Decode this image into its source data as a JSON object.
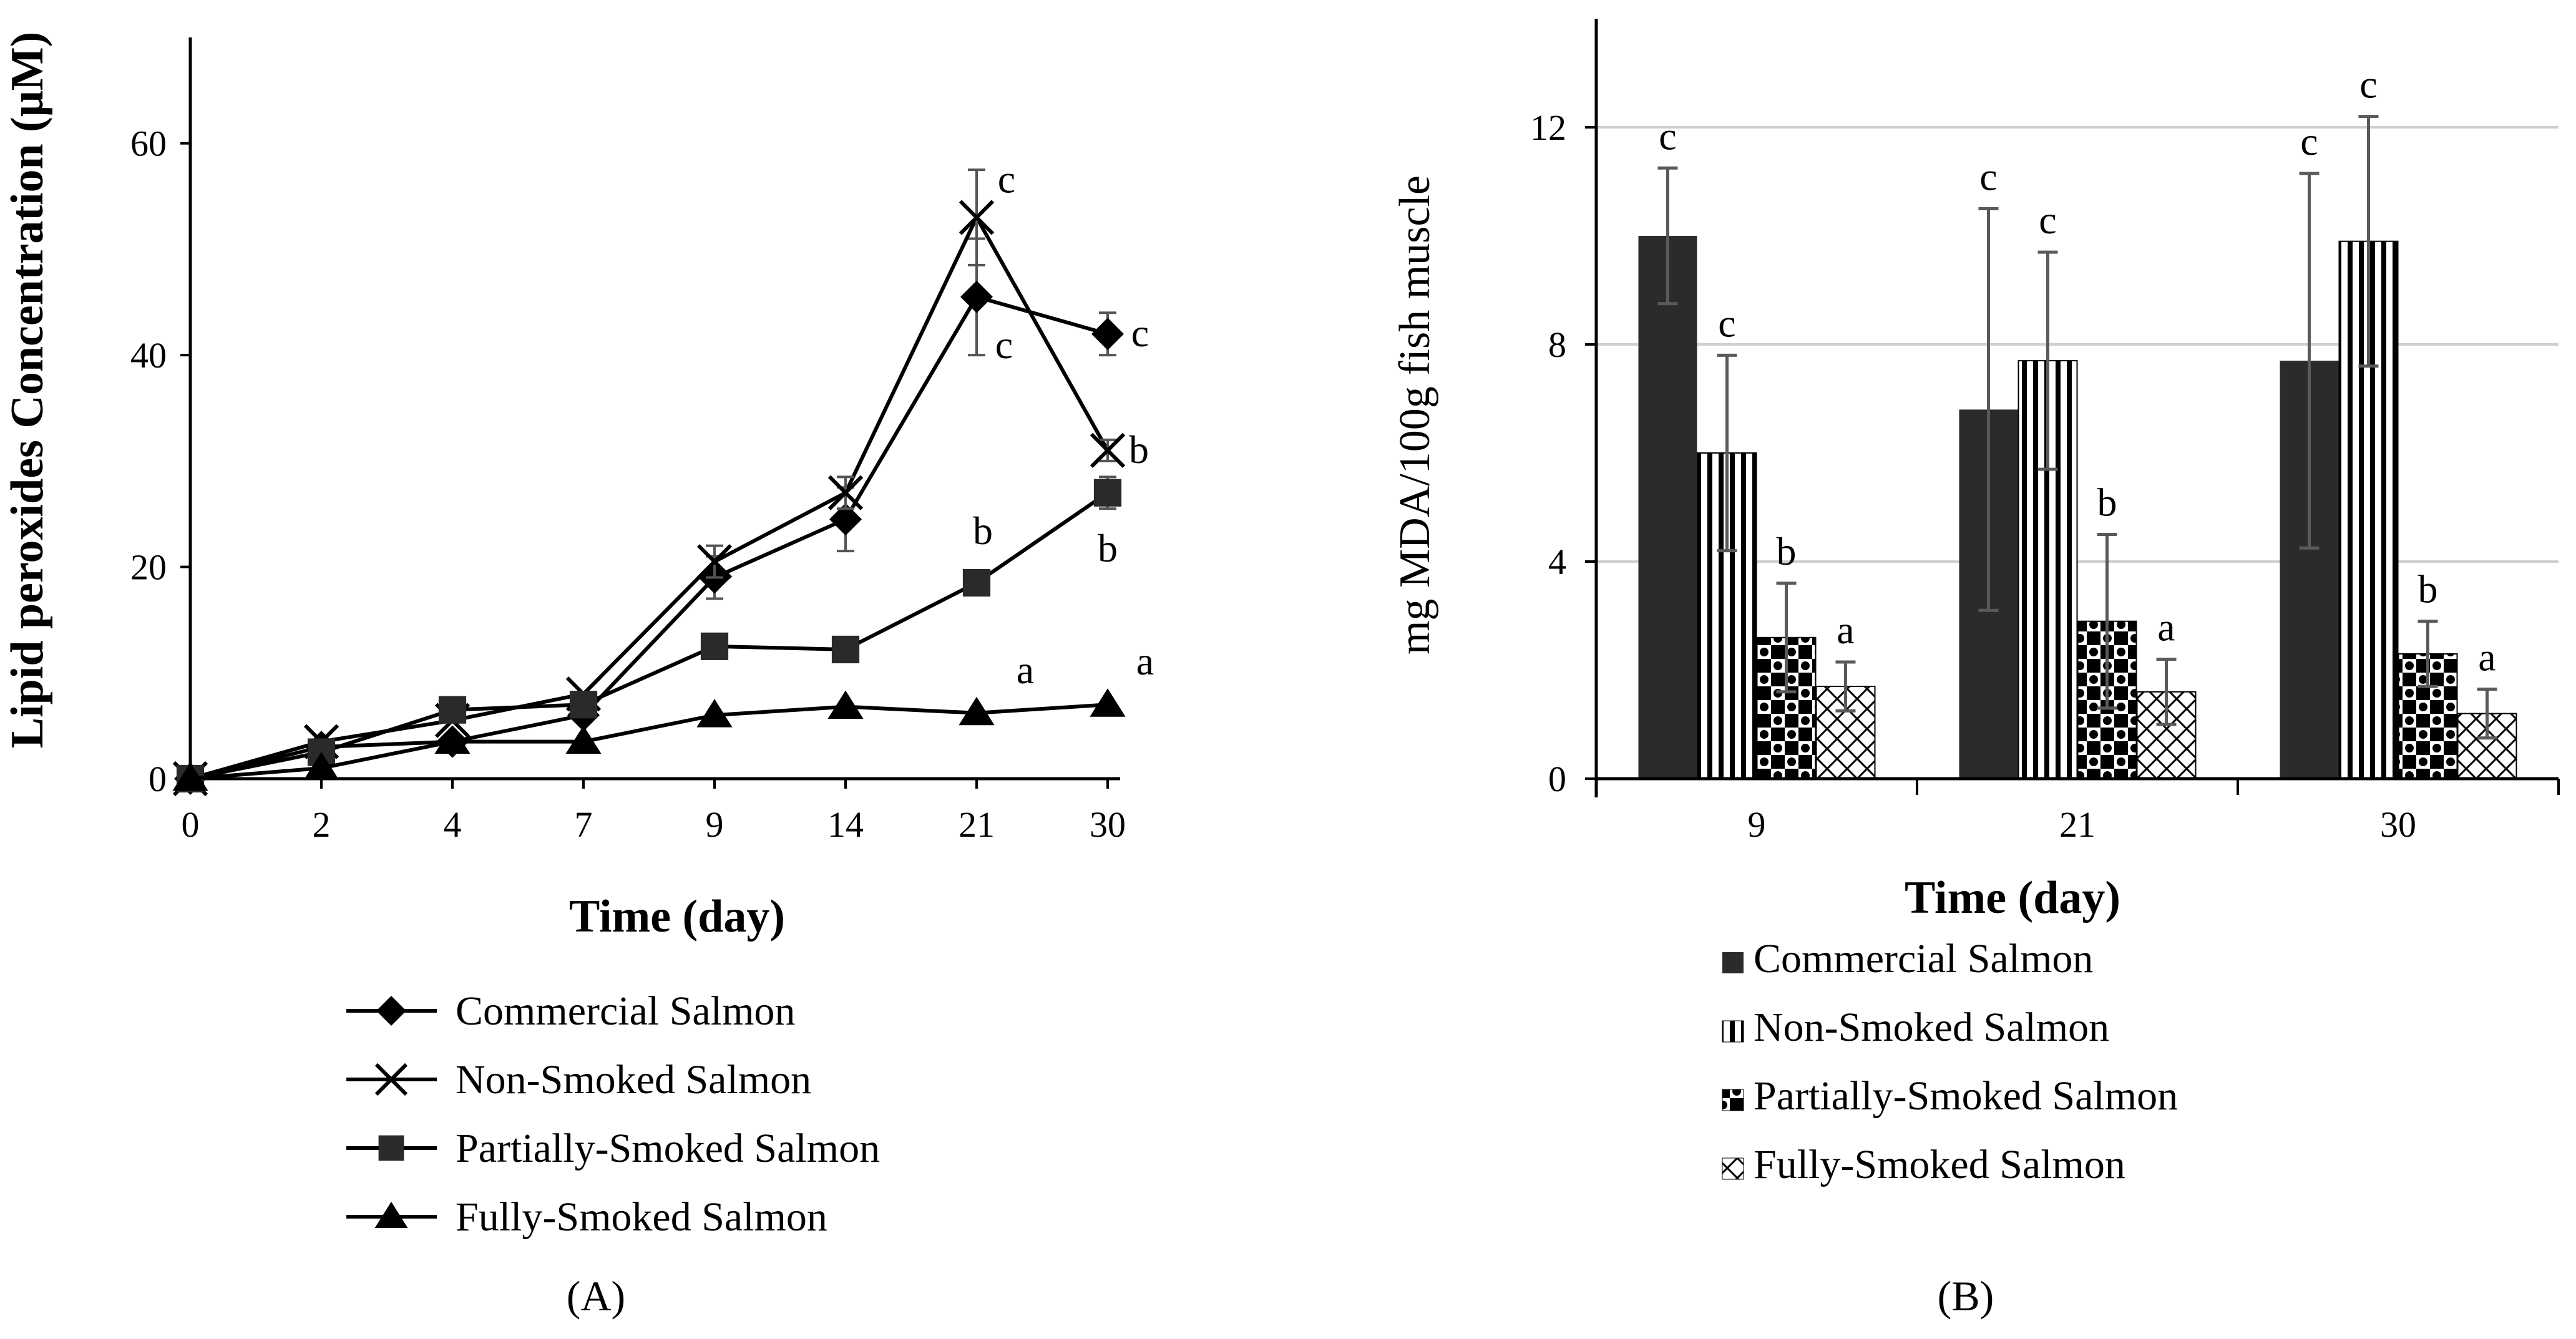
{
  "figure": {
    "panel_a_label": "(A)",
    "panel_b_label": "(B)"
  },
  "chart_data": [
    {
      "type": "line",
      "panel": "A",
      "title": "",
      "xlabel": "Time (day)",
      "ylabel": "Lipid peroxides Concentration (μM)",
      "ylim": [
        0,
        70
      ],
      "yticks": [
        0,
        20,
        40,
        60
      ],
      "categories": [
        "0",
        "2",
        "4",
        "7",
        "9",
        "14",
        "21",
        "30"
      ],
      "grid": false,
      "legend_position": "bottom",
      "series": [
        {
          "name": "Commercial Salmon",
          "marker": "diamond",
          "color": "#000000",
          "values": [
            0,
            3,
            3.5,
            6,
            19,
            24.5,
            45.5,
            42
          ],
          "errors": [
            0,
            0,
            0,
            0,
            2,
            3,
            5.5,
            2
          ],
          "labels": [
            {
              "index": 6,
              "text": "c"
            },
            {
              "index": 7,
              "text": "c"
            }
          ]
        },
        {
          "name": "Non-Smoked Salmon",
          "marker": "x",
          "color": "#000000",
          "values": [
            0,
            3.5,
            5.5,
            8,
            20.5,
            27,
            53,
            31
          ],
          "errors": [
            0,
            0,
            0,
            0,
            1.5,
            1.5,
            4.5,
            1
          ],
          "labels": [
            {
              "index": 6,
              "text": "c"
            },
            {
              "index": 7,
              "text": "b"
            }
          ]
        },
        {
          "name": "Partially-Smoked Salmon",
          "marker": "square",
          "color": "#2a2a2a",
          "values": [
            0,
            2.5,
            6.5,
            7,
            12.5,
            12.2,
            18.5,
            27
          ],
          "errors": [
            0,
            0,
            0,
            0,
            0,
            0,
            0,
            1.5
          ],
          "labels": [
            {
              "index": 6,
              "text": "b"
            },
            {
              "index": 7,
              "text": "b"
            }
          ]
        },
        {
          "name": "Fully-Smoked Salmon",
          "marker": "triangle",
          "color": "#000000",
          "values": [
            0,
            1,
            3.5,
            3.5,
            6,
            6.8,
            6.2,
            7
          ],
          "errors": [
            0,
            0,
            0,
            0,
            0,
            0,
            0,
            0
          ],
          "labels": [
            {
              "index": 6,
              "text": "a"
            },
            {
              "index": 7,
              "text": "a"
            }
          ]
        }
      ]
    },
    {
      "type": "bar",
      "panel": "B",
      "title": "",
      "xlabel": "Time (day)",
      "ylabel": "mg MDA/100g fish muscle",
      "ylim": [
        0,
        14
      ],
      "yticks": [
        0,
        4,
        8,
        12
      ],
      "categories": [
        "9",
        "21",
        "30"
      ],
      "grid": true,
      "legend_position": "bottom",
      "series": [
        {
          "name": "Commercial Salmon",
          "pattern": "solid",
          "values": [
            10,
            6.8,
            7.7
          ],
          "errors": [
            1.25,
            3.7,
            3.45
          ],
          "labels": [
            "c",
            "c",
            "c"
          ]
        },
        {
          "name": "Non-Smoked Salmon",
          "pattern": "vertical-stripes",
          "values": [
            6,
            7.7,
            9.9
          ],
          "errors": [
            1.8,
            2.0,
            2.3
          ],
          "labels": [
            "c",
            "c",
            "c"
          ]
        },
        {
          "name": "Partially-Smoked Salmon",
          "pattern": "checker",
          "values": [
            2.6,
            2.9,
            2.3
          ],
          "errors": [
            1.0,
            1.6,
            0.6
          ],
          "labels": [
            "b",
            "b",
            "b"
          ]
        },
        {
          "name": "Fully-Smoked Salmon",
          "pattern": "crosshatch",
          "values": [
            1.7,
            1.6,
            1.2
          ],
          "errors": [
            0.45,
            0.6,
            0.45
          ],
          "labels": [
            "a",
            "a",
            "a"
          ]
        }
      ]
    }
  ]
}
